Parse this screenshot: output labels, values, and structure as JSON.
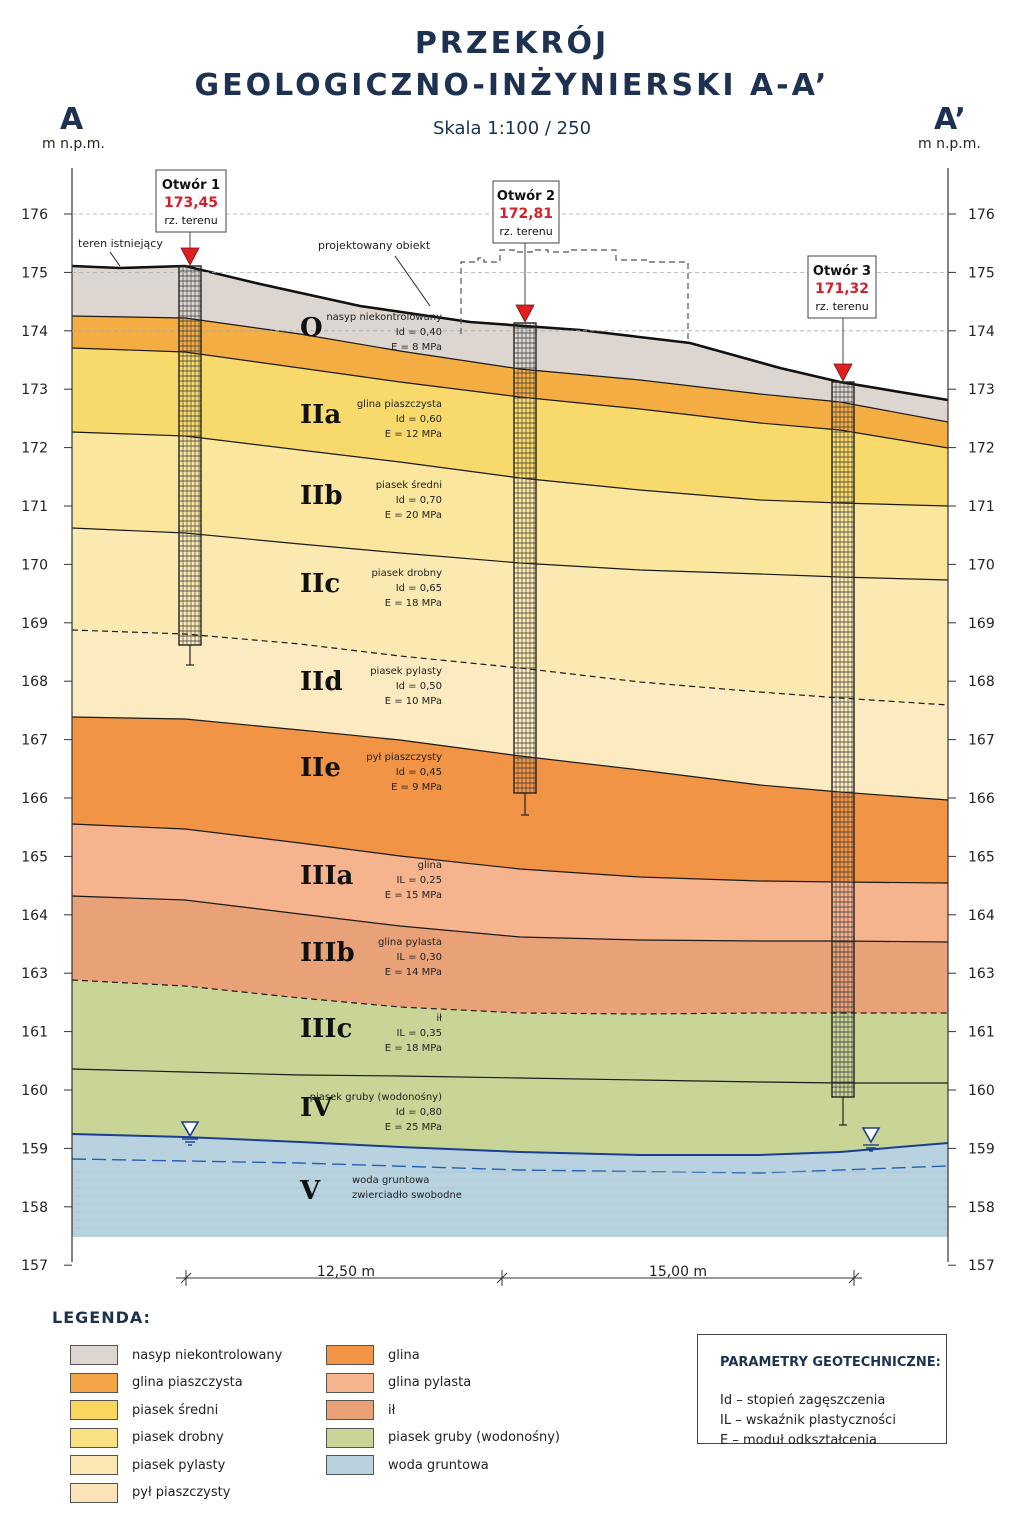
{
  "title": {
    "line1": "PRZEKRÓJ",
    "line2": "GEOLOGICZNO-INŻYNIERSKI A-A’",
    "scale": "Skala 1:100 / 250"
  },
  "corners": {
    "left": "A",
    "right": "A’",
    "unit": "m n.p.m."
  },
  "axis": {
    "ticks_left": [
      "176",
      "175",
      "174",
      "173",
      "172",
      "171",
      "170",
      "169",
      "168",
      "167",
      "166",
      "165",
      "164",
      "163",
      "161",
      "160",
      "159",
      "158",
      "157"
    ]
  },
  "annotations": {
    "existing_terrain": "teren istniejący",
    "designed_object": "projektowany obiekt"
  },
  "boreholes": [
    {
      "name": "Otwór 1",
      "elevation": "173,45",
      "label": "rz. terenu"
    },
    {
      "name": "Otwór 2",
      "elevation": "172,81",
      "label": "rz. terenu"
    },
    {
      "name": "Otwór 3",
      "elevation": "171,32",
      "label": "rz. terenu"
    }
  ],
  "layers": [
    {
      "code": "O",
      "name": "nasyp niekontrolowany",
      "p1": "Id = 0,40",
      "p2": "E = 8 MPa",
      "color": "#ddd6d0"
    },
    {
      "code": "IIa",
      "name": "glina piaszczysta",
      "p1": "Id = 0,60",
      "p2": "E = 12 MPa",
      "color": "#f3ad43"
    },
    {
      "code": "IIb",
      "name": "piasek średni",
      "p1": "Id = 0,70",
      "p2": "E = 20 MPa",
      "color": "#f8da6c"
    },
    {
      "code": "IIc",
      "name": "piasek drobny",
      "p1": "Id = 0,65",
      "p2": "E = 18 MPa",
      "color": "#fae69d"
    },
    {
      "code": "IId",
      "name": "piasek pylasty",
      "p1": "Id = 0,50",
      "p2": "E = 10 MPa",
      "color": "#fbe9b2"
    },
    {
      "code": "IIe",
      "name": "pył piaszczysty",
      "p1": "Id = 0,45",
      "p2": "E = 9 MPa",
      "color": "#fcebc0"
    },
    {
      "code": "IIIa",
      "name": "glina",
      "p1": "IL = 0,25",
      "p2": "E = 15 MPa",
      "color": "#f29446"
    },
    {
      "code": "IIIb",
      "name": "glina pylasta",
      "p1": "IL = 0,30",
      "p2": "E = 14 MPa",
      "color": "#f5b38e"
    },
    {
      "code": "IIIc",
      "name": "ił",
      "p1": "IL = 0,35",
      "p2": "E = 18 MPa",
      "color": "#e9a277"
    },
    {
      "code": "IV",
      "name": "piasek gruby (wodonośny)",
      "p1": "Id = 0,80",
      "p2": "E = 25 MPa",
      "color": "#c8d597"
    },
    {
      "code": "V",
      "name": "woda gruntowa",
      "p1": "zwierciadło swobodne",
      "p2": "",
      "color": "#b8d3df"
    }
  ],
  "dimensions": {
    "d1": "12,50 m",
    "d2": "15,00 m"
  },
  "legend": {
    "title": "LEGENDA:",
    "col1": [
      {
        "label": "nasyp niekontrolowany",
        "color": "#ddd6d0"
      },
      {
        "label": "glina piaszczysta",
        "color": "#f3a446"
      },
      {
        "label": "piasek średni",
        "color": "#f8d65f"
      },
      {
        "label": "piasek drobny",
        "color": "#fae184"
      },
      {
        "label": "piasek pylasty",
        "color": "#fbe8b4"
      },
      {
        "label": "pył piaszczysty",
        "color": "#fce3b8"
      }
    ],
    "col2": [
      {
        "label": "glina",
        "color": "#f29446"
      },
      {
        "label": "glina pylasta",
        "color": "#f5b38e"
      },
      {
        "label": "ił",
        "color": "#e9a277"
      },
      {
        "label": "piasek gruby (wodonośny)",
        "color": "#c8d597"
      },
      {
        "label": "woda gruntowa",
        "color": "#b8d3df"
      }
    ]
  },
  "params": {
    "title": "PARAMETRY GEOTECHNICZNE:",
    "lines": [
      "Id – stopień zagęszczenia",
      "IL – wskaźnik plastyczności",
      "E – moduł odkształcenia"
    ]
  }
}
